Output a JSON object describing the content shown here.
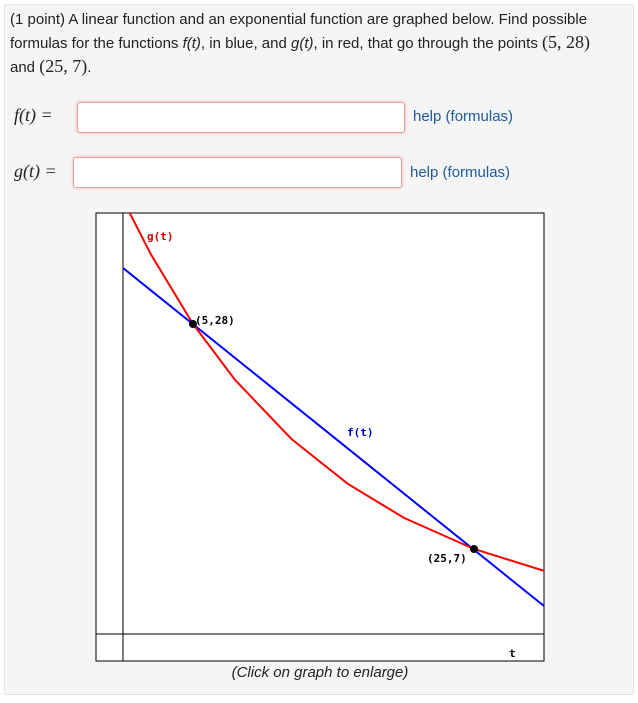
{
  "problem": {
    "points": "(1 point)",
    "text": [
      " A linear function and an exponential function are graphed below. Find possible",
      "formulas for the functions ",
      "f(t)",
      ", in blue, and ",
      "g(t)",
      ", in red, that go through the points ",
      "(5, 28)",
      "and ",
      "(25, 7)",
      "."
    ]
  },
  "fields": [
    {
      "label": "f(t) =",
      "help": "help (formulas)"
    },
    {
      "label": "g(t) =",
      "help": "help (formulas)"
    }
  ],
  "graph": {
    "labels": [
      "g(t)",
      "(5,28)",
      "f(t)",
      "(25,7)",
      "t"
    ],
    "caption": "(Click on graph to enlarge)"
  }
}
